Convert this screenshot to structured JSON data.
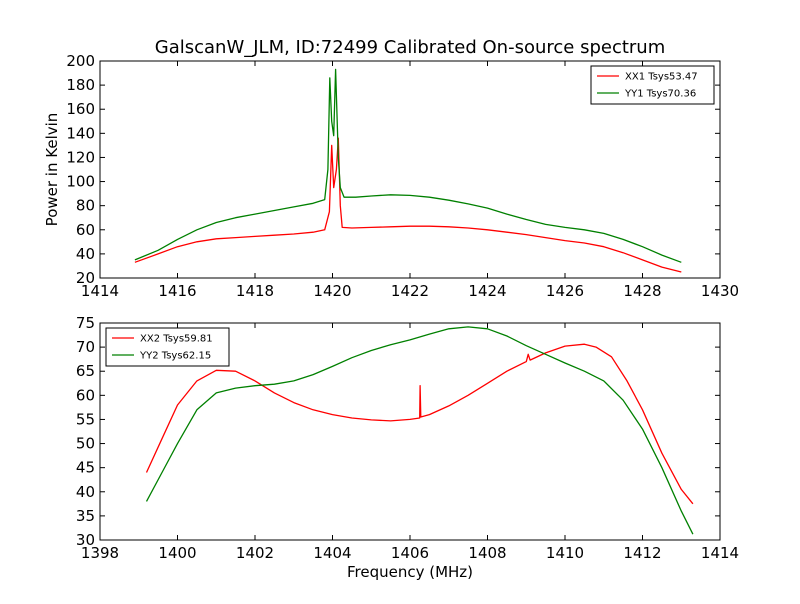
{
  "title": "GalscanW_JLM, ID:72499 Calibrated On-source spectrum",
  "colors": {
    "red": "#ff0000",
    "green": "#008000"
  },
  "chart_data": [
    {
      "type": "line",
      "ylabel": "Power in Kelvin",
      "xlabel": "",
      "xlim": [
        1414,
        1430
      ],
      "ylim": [
        20,
        200
      ],
      "xticks": [
        1414,
        1416,
        1418,
        1420,
        1422,
        1424,
        1426,
        1428,
        1430
      ],
      "yticks": [
        20,
        40,
        60,
        80,
        100,
        120,
        140,
        160,
        180,
        200
      ],
      "legend": "top-right",
      "series": [
        {
          "name": "XX1 Tsys53.47",
          "color": "#ff0000",
          "points": [
            [
              1414.9,
              33
            ],
            [
              1415.5,
              40
            ],
            [
              1416,
              46
            ],
            [
              1416.5,
              50
            ],
            [
              1417,
              52.5
            ],
            [
              1417.5,
              53.5
            ],
            [
              1418,
              54.5
            ],
            [
              1418.5,
              55.5
            ],
            [
              1419,
              56.5
            ],
            [
              1419.5,
              58
            ],
            [
              1419.8,
              60
            ],
            [
              1419.92,
              75
            ],
            [
              1419.98,
              130
            ],
            [
              1420.03,
              95
            ],
            [
              1420.1,
              110
            ],
            [
              1420.15,
              136
            ],
            [
              1420.2,
              80
            ],
            [
              1420.25,
              62
            ],
            [
              1420.5,
              61.5
            ],
            [
              1421,
              62
            ],
            [
              1421.5,
              62.5
            ],
            [
              1422,
              63
            ],
            [
              1422.5,
              63
            ],
            [
              1423,
              62.5
            ],
            [
              1423.5,
              61.5
            ],
            [
              1424,
              60
            ],
            [
              1424.5,
              58
            ],
            [
              1425,
              56
            ],
            [
              1425.5,
              53.5
            ],
            [
              1426,
              51
            ],
            [
              1426.5,
              49
            ],
            [
              1427,
              46
            ],
            [
              1427.5,
              41
            ],
            [
              1428,
              35
            ],
            [
              1428.5,
              29
            ],
            [
              1429,
              25
            ]
          ]
        },
        {
          "name": "YY1 Tsys70.36",
          "color": "#008000",
          "points": [
            [
              1414.9,
              35
            ],
            [
              1415.5,
              43
            ],
            [
              1416,
              52
            ],
            [
              1416.5,
              60
            ],
            [
              1417,
              66
            ],
            [
              1417.5,
              70
            ],
            [
              1418,
              73
            ],
            [
              1418.5,
              76
            ],
            [
              1419,
              79
            ],
            [
              1419.5,
              82
            ],
            [
              1419.8,
              85
            ],
            [
              1419.88,
              110
            ],
            [
              1419.93,
              186
            ],
            [
              1419.98,
              150
            ],
            [
              1420.03,
              138
            ],
            [
              1420.08,
              193
            ],
            [
              1420.15,
              120
            ],
            [
              1420.2,
              95
            ],
            [
              1420.3,
              87
            ],
            [
              1420.6,
              87
            ],
            [
              1421,
              88
            ],
            [
              1421.5,
              89
            ],
            [
              1422,
              88.5
            ],
            [
              1422.5,
              87
            ],
            [
              1423,
              84.5
            ],
            [
              1423.5,
              81.5
            ],
            [
              1424,
              78
            ],
            [
              1424.5,
              73
            ],
            [
              1425,
              68.5
            ],
            [
              1425.5,
              64.5
            ],
            [
              1426,
              62
            ],
            [
              1426.5,
              60
            ],
            [
              1427,
              57
            ],
            [
              1427.5,
              52
            ],
            [
              1428,
              46
            ],
            [
              1428.5,
              39
            ],
            [
              1429,
              33
            ]
          ]
        }
      ]
    },
    {
      "type": "line",
      "ylabel": "",
      "xlabel": "Frequency (MHz)",
      "xlim": [
        1398,
        1414
      ],
      "ylim": [
        30,
        75
      ],
      "xticks": [
        1398,
        1400,
        1402,
        1404,
        1406,
        1408,
        1410,
        1412,
        1414
      ],
      "yticks": [
        30,
        35,
        40,
        45,
        50,
        55,
        60,
        65,
        70,
        75
      ],
      "legend": "top-left",
      "series": [
        {
          "name": "XX2 Tsys59.81",
          "color": "#ff0000",
          "points": [
            [
              1399.2,
              44
            ],
            [
              1399.6,
              51
            ],
            [
              1400,
              58
            ],
            [
              1400.5,
              63
            ],
            [
              1401,
              65.2
            ],
            [
              1401.5,
              65
            ],
            [
              1402,
              63
            ],
            [
              1402.5,
              60.5
            ],
            [
              1403,
              58.5
            ],
            [
              1403.5,
              57
            ],
            [
              1404,
              56
            ],
            [
              1404.5,
              55.3
            ],
            [
              1405,
              54.9
            ],
            [
              1405.5,
              54.7
            ],
            [
              1406,
              55
            ],
            [
              1406.25,
              55.3
            ],
            [
              1406.26,
              62
            ],
            [
              1406.28,
              55.5
            ],
            [
              1406.5,
              56
            ],
            [
              1407,
              57.8
            ],
            [
              1407.5,
              60
            ],
            [
              1408,
              62.5
            ],
            [
              1408.5,
              65
            ],
            [
              1409,
              67
            ],
            [
              1409.05,
              68.5
            ],
            [
              1409.1,
              67.3
            ],
            [
              1409.5,
              68.8
            ],
            [
              1410,
              70.2
            ],
            [
              1410.5,
              70.6
            ],
            [
              1410.8,
              70
            ],
            [
              1411.2,
              68
            ],
            [
              1411.6,
              63
            ],
            [
              1412,
              57
            ],
            [
              1412.5,
              48
            ],
            [
              1413,
              40.5
            ],
            [
              1413.3,
              37.5
            ]
          ]
        },
        {
          "name": "YY2 Tsys62.15",
          "color": "#008000",
          "points": [
            [
              1399.2,
              38
            ],
            [
              1399.6,
              44
            ],
            [
              1400,
              50
            ],
            [
              1400.5,
              57
            ],
            [
              1401,
              60.5
            ],
            [
              1401.5,
              61.5
            ],
            [
              1402,
              62
            ],
            [
              1402.5,
              62.3
            ],
            [
              1403,
              63
            ],
            [
              1403.5,
              64.3
            ],
            [
              1404,
              66
            ],
            [
              1404.5,
              67.8
            ],
            [
              1405,
              69.3
            ],
            [
              1405.5,
              70.5
            ],
            [
              1406,
              71.5
            ],
            [
              1406.5,
              72.7
            ],
            [
              1407,
              73.8
            ],
            [
              1407.5,
              74.2
            ],
            [
              1408,
              73.8
            ],
            [
              1408.5,
              72.3
            ],
            [
              1409,
              70.3
            ],
            [
              1409.5,
              68.5
            ],
            [
              1410,
              66.7
            ],
            [
              1410.5,
              65
            ],
            [
              1411,
              63
            ],
            [
              1411.5,
              59
            ],
            [
              1412,
              53
            ],
            [
              1412.5,
              45
            ],
            [
              1413,
              36
            ],
            [
              1413.3,
              31.2
            ]
          ]
        }
      ]
    }
  ]
}
